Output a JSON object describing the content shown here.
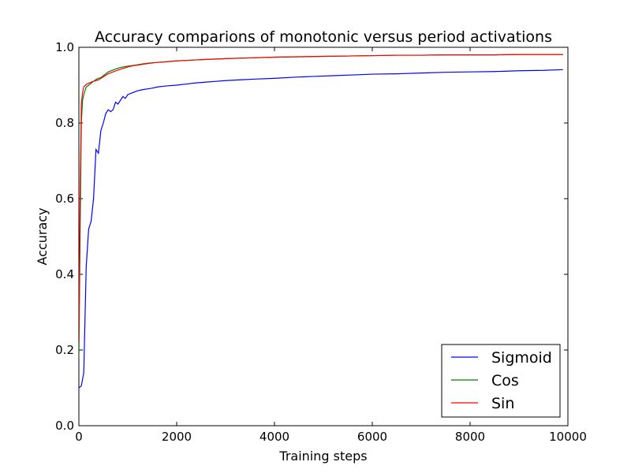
{
  "chart_data": {
    "type": "line",
    "title": "Accuracy comparions of monotonic versus period activations",
    "xlabel": "Training steps",
    "ylabel": "Accuracy",
    "xlim": [
      0,
      10000
    ],
    "ylim": [
      0.0,
      1.0
    ],
    "xticks": [
      0,
      2000,
      4000,
      6000,
      8000,
      10000
    ],
    "xtick_labels": [
      "0",
      "2000",
      "4000",
      "6000",
      "8000",
      "10000"
    ],
    "yticks": [
      0.0,
      0.2,
      0.4,
      0.6,
      0.8,
      1.0
    ],
    "ytick_labels": [
      "0.0",
      "0.2",
      "0.4",
      "0.6",
      "0.8",
      "1.0"
    ],
    "grid": false,
    "legend_position": "lower-right",
    "series": [
      {
        "name": "Sigmoid",
        "color": "#0000ff",
        "x": [
          0,
          50,
          100,
          150,
          200,
          250,
          300,
          350,
          400,
          450,
          500,
          550,
          600,
          650,
          700,
          750,
          800,
          850,
          900,
          950,
          1000,
          1100,
          1200,
          1300,
          1400,
          1500,
          1600,
          1800,
          2000,
          2200,
          2400,
          2600,
          2800,
          3000,
          3300,
          3600,
          4000,
          4400,
          4800,
          5200,
          5600,
          6000,
          6500,
          7000,
          7500,
          8000,
          8500,
          9000,
          9500,
          9900
        ],
        "y": [
          0.1,
          0.105,
          0.14,
          0.42,
          0.52,
          0.54,
          0.6,
          0.73,
          0.72,
          0.78,
          0.8,
          0.825,
          0.835,
          0.83,
          0.835,
          0.855,
          0.85,
          0.86,
          0.87,
          0.865,
          0.875,
          0.88,
          0.885,
          0.888,
          0.89,
          0.892,
          0.895,
          0.898,
          0.9,
          0.903,
          0.906,
          0.908,
          0.91,
          0.912,
          0.914,
          0.916,
          0.918,
          0.921,
          0.923,
          0.925,
          0.927,
          0.929,
          0.93,
          0.932,
          0.934,
          0.935,
          0.936,
          0.938,
          0.939,
          0.941
        ]
      },
      {
        "name": "Cos",
        "color": "#008000",
        "x": [
          0,
          25,
          50,
          75,
          100,
          150,
          200,
          250,
          300,
          350,
          400,
          450,
          500,
          550,
          600,
          700,
          800,
          900,
          1000,
          1100,
          1200,
          1300,
          1400,
          1600,
          1800,
          2000,
          2300,
          2600,
          3000,
          3500,
          4000,
          4500,
          5000,
          5500,
          6000,
          6500,
          7000,
          7500,
          8000,
          8500,
          9000,
          9500,
          9900
        ],
        "y": [
          0.18,
          0.5,
          0.8,
          0.86,
          0.875,
          0.895,
          0.9,
          0.905,
          0.91,
          0.915,
          0.918,
          0.92,
          0.925,
          0.93,
          0.935,
          0.94,
          0.945,
          0.948,
          0.95,
          0.952,
          0.954,
          0.956,
          0.958,
          0.96,
          0.962,
          0.964,
          0.966,
          0.968,
          0.97,
          0.972,
          0.974,
          0.975,
          0.976,
          0.977,
          0.978,
          0.979,
          0.979,
          0.98,
          0.98,
          0.98,
          0.981,
          0.981,
          0.981
        ]
      },
      {
        "name": "Sin",
        "color": "#ff0000",
        "x": [
          0,
          25,
          50,
          75,
          100,
          150,
          200,
          250,
          300,
          350,
          400,
          450,
          500,
          550,
          600,
          700,
          800,
          900,
          1000,
          1100,
          1200,
          1300,
          1400,
          1600,
          1800,
          2000,
          2300,
          2600,
          3000,
          3500,
          4000,
          4500,
          5000,
          5500,
          6000,
          6500,
          7000,
          7500,
          8000,
          8500,
          9000,
          9500,
          9900
        ],
        "y": [
          0.22,
          0.6,
          0.85,
          0.88,
          0.895,
          0.902,
          0.905,
          0.908,
          0.91,
          0.912,
          0.914,
          0.918,
          0.922,
          0.926,
          0.93,
          0.935,
          0.94,
          0.944,
          0.948,
          0.951,
          0.953,
          0.955,
          0.957,
          0.96,
          0.962,
          0.964,
          0.966,
          0.968,
          0.97,
          0.972,
          0.974,
          0.975,
          0.976,
          0.977,
          0.978,
          0.979,
          0.979,
          0.98,
          0.98,
          0.98,
          0.981,
          0.981,
          0.981
        ]
      }
    ]
  }
}
